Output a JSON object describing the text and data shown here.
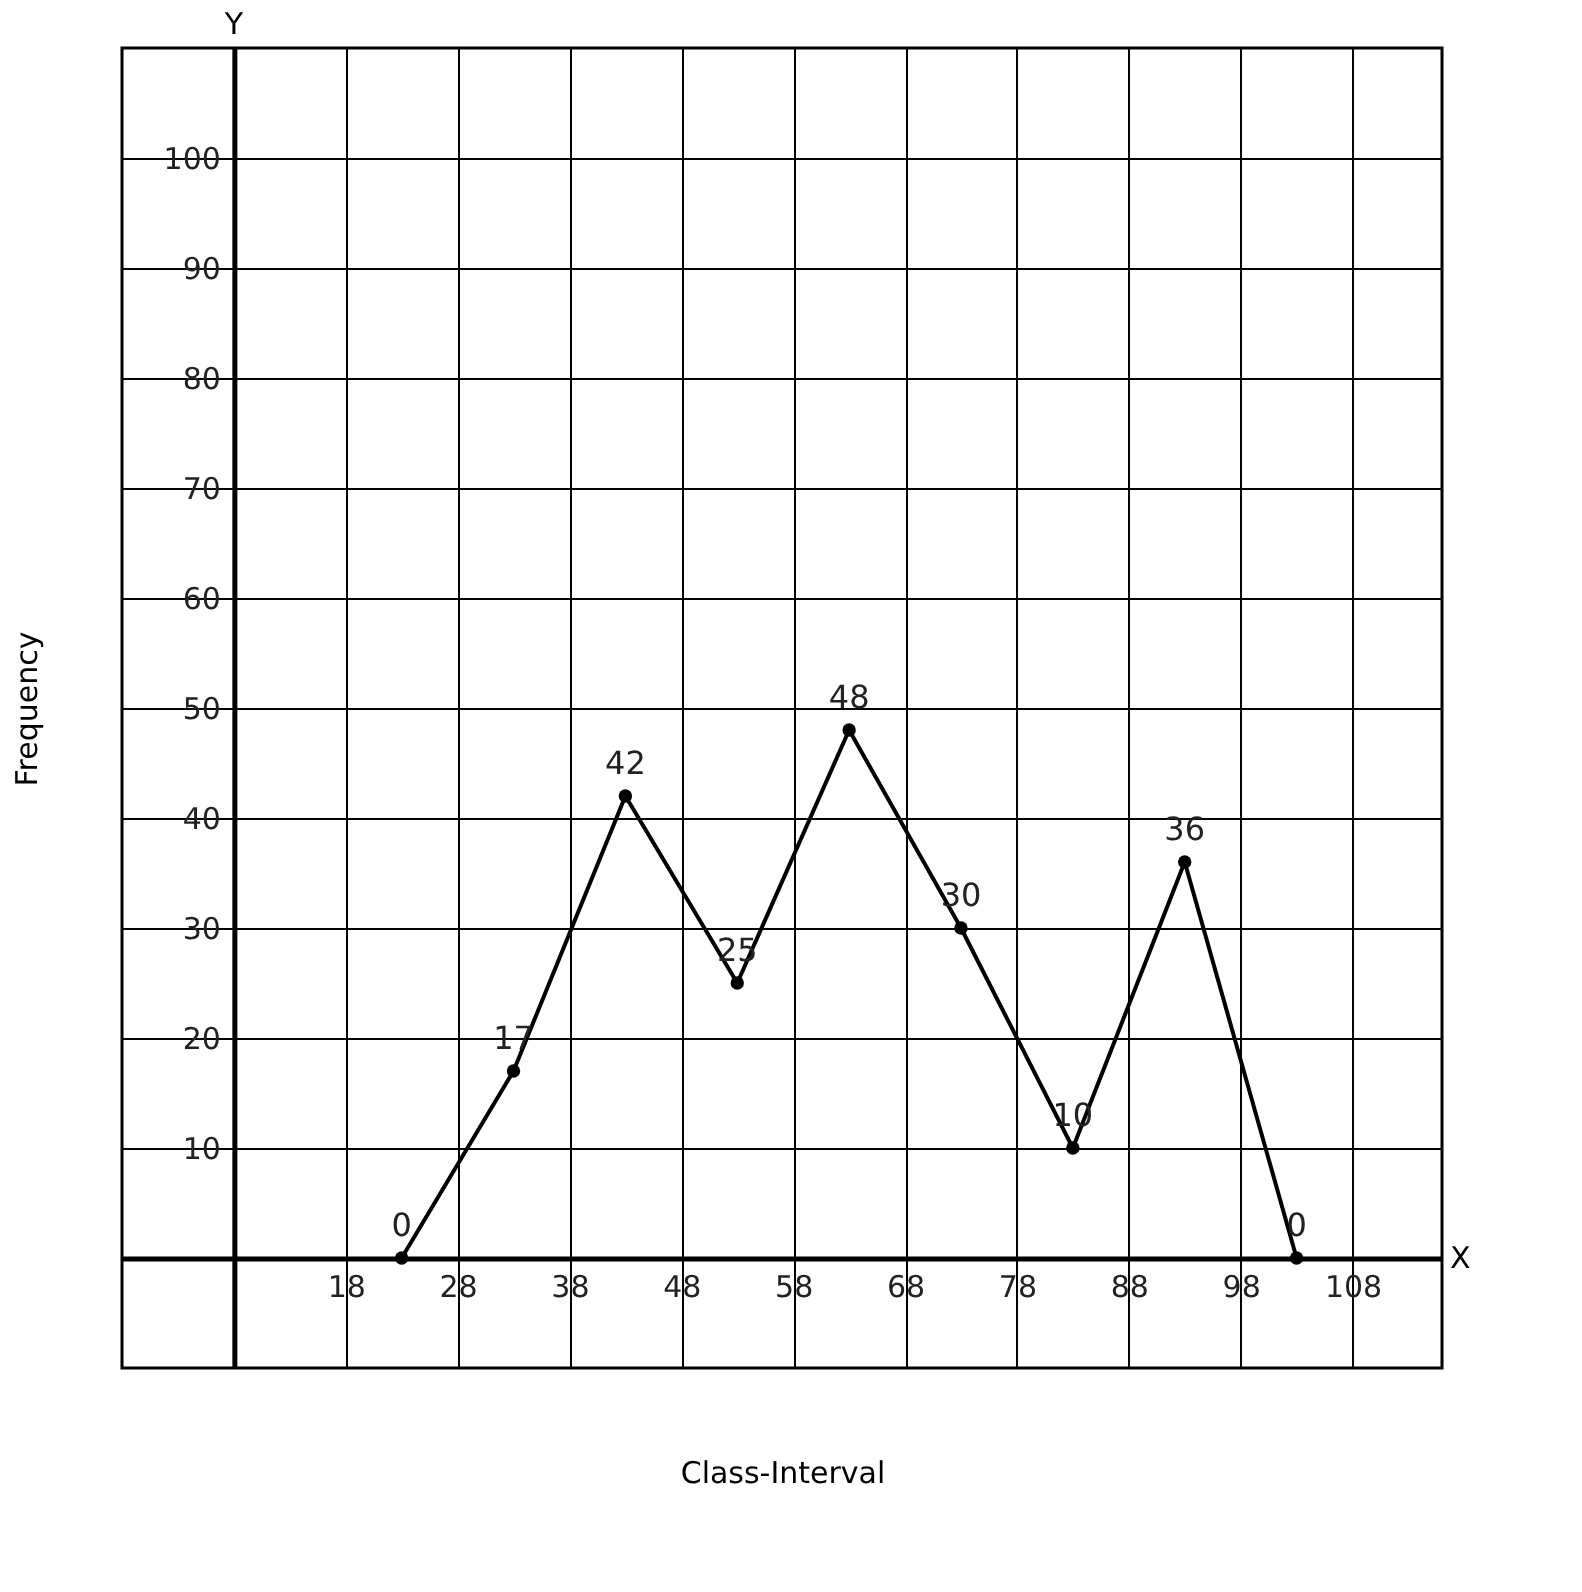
{
  "chart_data": {
    "type": "line",
    "xlabel": "Class-Interval",
    "ylabel": "Frequency",
    "annotations": [
      "Y",
      "X"
    ],
    "x": [
      23,
      33,
      43,
      53,
      63,
      73,
      83,
      93,
      103
    ],
    "values": [
      0,
      17,
      42,
      25,
      48,
      30,
      10,
      36,
      0
    ],
    "color": "#000000",
    "data_labels": true,
    "marker": "circle",
    "line_style": "solid",
    "grid": true,
    "xlim": [
      -2,
      116
    ],
    "ylim": [
      -10,
      110
    ],
    "xticks": [
      {
        "value": 8,
        "label": null
      },
      18,
      28,
      38,
      48,
      58,
      68,
      78,
      88,
      98,
      108
    ],
    "yticks": [
      10,
      20,
      30,
      40,
      50,
      60,
      70,
      80,
      90,
      100
    ]
  }
}
